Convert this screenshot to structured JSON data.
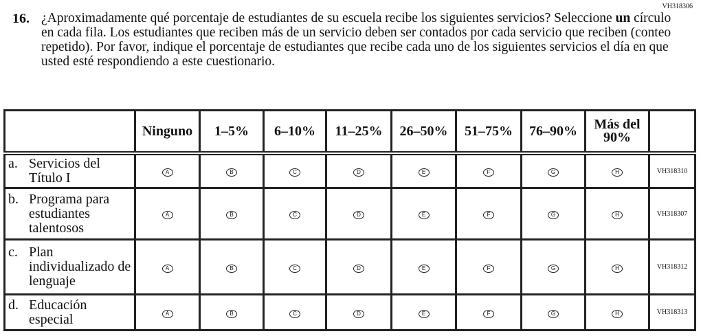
{
  "form_code": "VH318306",
  "question": {
    "number": "16.",
    "text_part1": "¿Aproximadamente qué porcentaje de estudiantes de su escuela recibe los siguientes servicios? Seleccione ",
    "text_bold": "un",
    "text_part2": " círculo en cada fila. Los estudiantes que reciben más de un servicio deben ser contados por cada servicio que reciben (conteo repetido). Por favor, indique el porcentaje de estudiantes que recibe cada uno de los siguientes servicios el día en que usted esté respondiendo a este cuestionario."
  },
  "columns": [
    "Ninguno",
    "1–5%",
    "6–10%",
    "11–25%",
    "26–50%",
    "51–75%",
    "76–90%",
    "Más del 90%"
  ],
  "bubbles": [
    "A",
    "B",
    "C",
    "D",
    "E",
    "F",
    "G",
    "H"
  ],
  "rows": [
    {
      "letter": "a.",
      "label": "Servicios del Título I",
      "code": "VH318310"
    },
    {
      "letter": "b.",
      "label": "Programa para estudiantes talentosos",
      "code": "VH318307"
    },
    {
      "letter": "c.",
      "label": "Plan individualizado de lenguaje",
      "code": "VH318312"
    },
    {
      "letter": "d.",
      "label": "Educación especial",
      "code": "VH318313"
    }
  ]
}
